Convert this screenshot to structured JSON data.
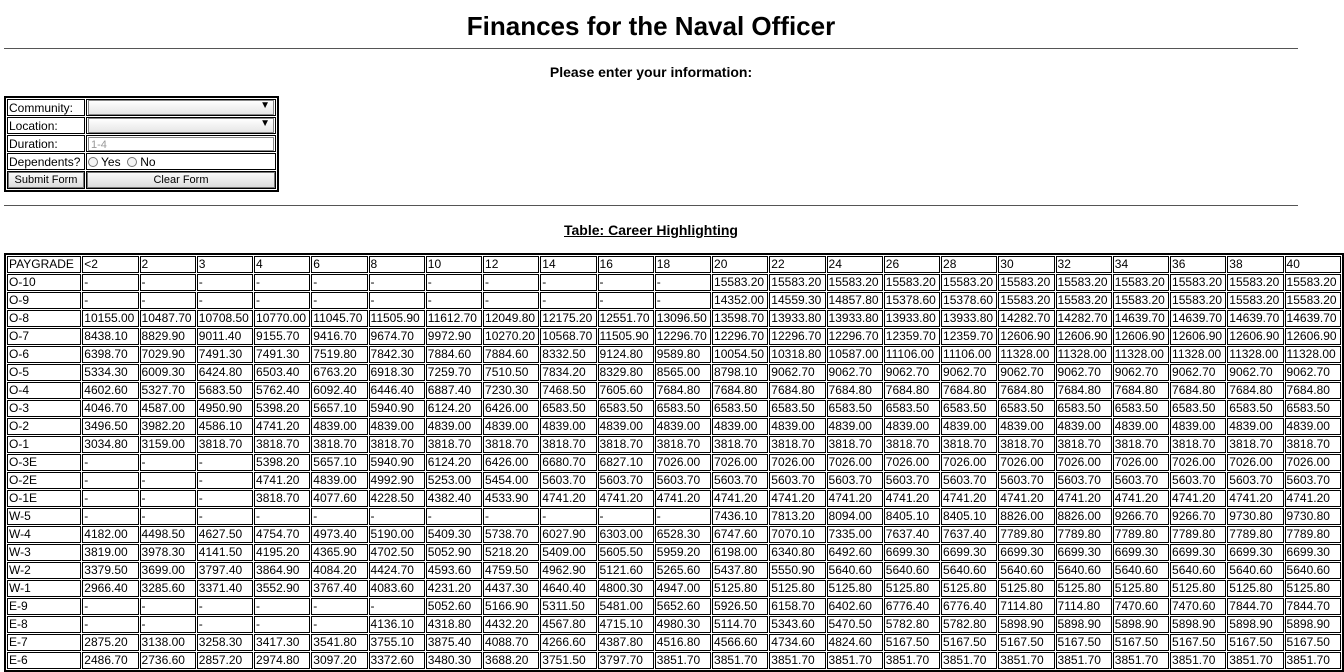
{
  "page": {
    "title": "Finances for the Naval Officer",
    "form_heading": "Please enter your information:",
    "table_caption": "Table: Career Highlighting"
  },
  "form": {
    "community_label": "Community:",
    "community_value": "",
    "location_label": "Location:",
    "location_value": "",
    "duration_label": "Duration:",
    "duration_placeholder": "1-4",
    "dependents_label": "Dependents?",
    "yes_label": "Yes",
    "no_label": "No",
    "submit_label": "Submit Form",
    "clear_label": "Clear Form"
  },
  "pay_table": {
    "headers": [
      "PAYGRADE",
      "<2",
      "2",
      "3",
      "4",
      "6",
      "8",
      "10",
      "12",
      "14",
      "16",
      "18",
      "20",
      "22",
      "24",
      "26",
      "28",
      "30",
      "32",
      "34",
      "36",
      "38",
      "40"
    ],
    "rows": [
      [
        "O-10",
        "-",
        "-",
        "-",
        "-",
        "-",
        "-",
        "-",
        "-",
        "-",
        "-",
        "-",
        "15583.20",
        "15583.20",
        "15583.20",
        "15583.20",
        "15583.20",
        "15583.20",
        "15583.20",
        "15583.20",
        "15583.20",
        "15583.20",
        "15583.20"
      ],
      [
        "O-9",
        "-",
        "-",
        "-",
        "-",
        "-",
        "-",
        "-",
        "-",
        "-",
        "-",
        "-",
        "14352.00",
        "14559.30",
        "14857.80",
        "15378.60",
        "15378.60",
        "15583.20",
        "15583.20",
        "15583.20",
        "15583.20",
        "15583.20",
        "15583.20"
      ],
      [
        "O-8",
        "10155.00",
        "10487.70",
        "10708.50",
        "10770.00",
        "11045.70",
        "11505.90",
        "11612.70",
        "12049.80",
        "12175.20",
        "12551.70",
        "13096.50",
        "13598.70",
        "13933.80",
        "13933.80",
        "13933.80",
        "13933.80",
        "14282.70",
        "14282.70",
        "14639.70",
        "14639.70",
        "14639.70",
        "14639.70"
      ],
      [
        "O-7",
        "8438.10",
        "8829.90",
        "9011.40",
        "9155.70",
        "9416.70",
        "9674.70",
        "9972.90",
        "10270.20",
        "10568.70",
        "11505.90",
        "12296.70",
        "12296.70",
        "12296.70",
        "12296.70",
        "12359.70",
        "12359.70",
        "12606.90",
        "12606.90",
        "12606.90",
        "12606.90",
        "12606.90",
        "12606.90"
      ],
      [
        "O-6",
        "6398.70",
        "7029.90",
        "7491.30",
        "7491.30",
        "7519.80",
        "7842.30",
        "7884.60",
        "7884.60",
        "8332.50",
        "9124.80",
        "9589.80",
        "10054.50",
        "10318.80",
        "10587.00",
        "11106.00",
        "11106.00",
        "11328.00",
        "11328.00",
        "11328.00",
        "11328.00",
        "11328.00",
        "11328.00"
      ],
      [
        "O-5",
        "5334.30",
        "6009.30",
        "6424.80",
        "6503.40",
        "6763.20",
        "6918.30",
        "7259.70",
        "7510.50",
        "7834.20",
        "8329.80",
        "8565.00",
        "8798.10",
        "9062.70",
        "9062.70",
        "9062.70",
        "9062.70",
        "9062.70",
        "9062.70",
        "9062.70",
        "9062.70",
        "9062.70",
        "9062.70"
      ],
      [
        "O-4",
        "4602.60",
        "5327.70",
        "5683.50",
        "5762.40",
        "6092.40",
        "6446.40",
        "6887.40",
        "7230.30",
        "7468.50",
        "7605.60",
        "7684.80",
        "7684.80",
        "7684.80",
        "7684.80",
        "7684.80",
        "7684.80",
        "7684.80",
        "7684.80",
        "7684.80",
        "7684.80",
        "7684.80",
        "7684.80"
      ],
      [
        "O-3",
        "4046.70",
        "4587.00",
        "4950.90",
        "5398.20",
        "5657.10",
        "5940.90",
        "6124.20",
        "6426.00",
        "6583.50",
        "6583.50",
        "6583.50",
        "6583.50",
        "6583.50",
        "6583.50",
        "6583.50",
        "6583.50",
        "6583.50",
        "6583.50",
        "6583.50",
        "6583.50",
        "6583.50",
        "6583.50"
      ],
      [
        "O-2",
        "3496.50",
        "3982.20",
        "4586.10",
        "4741.20",
        "4839.00",
        "4839.00",
        "4839.00",
        "4839.00",
        "4839.00",
        "4839.00",
        "4839.00",
        "4839.00",
        "4839.00",
        "4839.00",
        "4839.00",
        "4839.00",
        "4839.00",
        "4839.00",
        "4839.00",
        "4839.00",
        "4839.00",
        "4839.00"
      ],
      [
        "O-1",
        "3034.80",
        "3159.00",
        "3818.70",
        "3818.70",
        "3818.70",
        "3818.70",
        "3818.70",
        "3818.70",
        "3818.70",
        "3818.70",
        "3818.70",
        "3818.70",
        "3818.70",
        "3818.70",
        "3818.70",
        "3818.70",
        "3818.70",
        "3818.70",
        "3818.70",
        "3818.70",
        "3818.70",
        "3818.70"
      ],
      [
        "O-3E",
        "-",
        "-",
        "-",
        "5398.20",
        "5657.10",
        "5940.90",
        "6124.20",
        "6426.00",
        "6680.70",
        "6827.10",
        "7026.00",
        "7026.00",
        "7026.00",
        "7026.00",
        "7026.00",
        "7026.00",
        "7026.00",
        "7026.00",
        "7026.00",
        "7026.00",
        "7026.00",
        "7026.00"
      ],
      [
        "O-2E",
        "-",
        "-",
        "-",
        "4741.20",
        "4839.00",
        "4992.90",
        "5253.00",
        "5454.00",
        "5603.70",
        "5603.70",
        "5603.70",
        "5603.70",
        "5603.70",
        "5603.70",
        "5603.70",
        "5603.70",
        "5603.70",
        "5603.70",
        "5603.70",
        "5603.70",
        "5603.70",
        "5603.70"
      ],
      [
        "O-1E",
        "-",
        "-",
        "-",
        "3818.70",
        "4077.60",
        "4228.50",
        "4382.40",
        "4533.90",
        "4741.20",
        "4741.20",
        "4741.20",
        "4741.20",
        "4741.20",
        "4741.20",
        "4741.20",
        "4741.20",
        "4741.20",
        "4741.20",
        "4741.20",
        "4741.20",
        "4741.20",
        "4741.20"
      ],
      [
        "W-5",
        "-",
        "-",
        "-",
        "-",
        "-",
        "-",
        "-",
        "-",
        "-",
        "-",
        "-",
        "7436.10",
        "7813.20",
        "8094.00",
        "8405.10",
        "8405.10",
        "8826.00",
        "8826.00",
        "9266.70",
        "9266.70",
        "9730.80",
        "9730.80"
      ],
      [
        "W-4",
        "4182.00",
        "4498.50",
        "4627.50",
        "4754.70",
        "4973.40",
        "5190.00",
        "5409.30",
        "5738.70",
        "6027.90",
        "6303.00",
        "6528.30",
        "6747.60",
        "7070.10",
        "7335.00",
        "7637.40",
        "7637.40",
        "7789.80",
        "7789.80",
        "7789.80",
        "7789.80",
        "7789.80",
        "7789.80"
      ],
      [
        "W-3",
        "3819.00",
        "3978.30",
        "4141.50",
        "4195.20",
        "4365.90",
        "4702.50",
        "5052.90",
        "5218.20",
        "5409.00",
        "5605.50",
        "5959.20",
        "6198.00",
        "6340.80",
        "6492.60",
        "6699.30",
        "6699.30",
        "6699.30",
        "6699.30",
        "6699.30",
        "6699.30",
        "6699.30",
        "6699.30"
      ],
      [
        "W-2",
        "3379.50",
        "3699.00",
        "3797.40",
        "3864.90",
        "4084.20",
        "4424.70",
        "4593.60",
        "4759.50",
        "4962.90",
        "5121.60",
        "5265.60",
        "5437.80",
        "5550.90",
        "5640.60",
        "5640.60",
        "5640.60",
        "5640.60",
        "5640.60",
        "5640.60",
        "5640.60",
        "5640.60",
        "5640.60"
      ],
      [
        "W-1",
        "2966.40",
        "3285.60",
        "3371.40",
        "3552.90",
        "3767.40",
        "4083.60",
        "4231.20",
        "4437.30",
        "4640.40",
        "4800.30",
        "4947.00",
        "5125.80",
        "5125.80",
        "5125.80",
        "5125.80",
        "5125.80",
        "5125.80",
        "5125.80",
        "5125.80",
        "5125.80",
        "5125.80",
        "5125.80"
      ],
      [
        "E-9",
        "-",
        "-",
        "-",
        "-",
        "-",
        "-",
        "5052.60",
        "5166.90",
        "5311.50",
        "5481.00",
        "5652.60",
        "5926.50",
        "6158.70",
        "6402.60",
        "6776.40",
        "6776.40",
        "7114.80",
        "7114.80",
        "7470.60",
        "7470.60",
        "7844.70",
        "7844.70"
      ],
      [
        "E-8",
        "-",
        "-",
        "-",
        "-",
        "-",
        "4136.10",
        "4318.80",
        "4432.20",
        "4567.80",
        "4715.10",
        "4980.30",
        "5114.70",
        "5343.60",
        "5470.50",
        "5782.80",
        "5782.80",
        "5898.90",
        "5898.90",
        "5898.90",
        "5898.90",
        "5898.90",
        "5898.90"
      ],
      [
        "E-7",
        "2875.20",
        "3138.00",
        "3258.30",
        "3417.30",
        "3541.80",
        "3755.10",
        "3875.40",
        "4088.70",
        "4266.60",
        "4387.80",
        "4516.80",
        "4566.60",
        "4734.60",
        "4824.60",
        "5167.50",
        "5167.50",
        "5167.50",
        "5167.50",
        "5167.50",
        "5167.50",
        "5167.50",
        "5167.50"
      ],
      [
        "E-6",
        "2486.70",
        "2736.60",
        "2857.20",
        "2974.80",
        "3097.20",
        "3372.60",
        "3480.30",
        "3688.20",
        "3751.50",
        "3797.70",
        "3851.70",
        "3851.70",
        "3851.70",
        "3851.70",
        "3851.70",
        "3851.70",
        "3851.70",
        "3851.70",
        "3851.70",
        "3851.70",
        "3851.70",
        "3851.70"
      ]
    ]
  }
}
